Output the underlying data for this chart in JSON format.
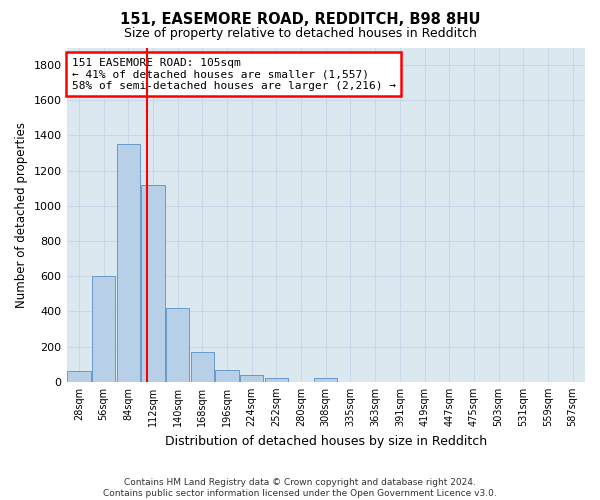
{
  "title1": "151, EASEMORE ROAD, REDDITCH, B98 8HU",
  "title2": "Size of property relative to detached houses in Redditch",
  "xlabel": "Distribution of detached houses by size in Redditch",
  "ylabel": "Number of detached properties",
  "footer": "Contains HM Land Registry data © Crown copyright and database right 2024.\nContains public sector information licensed under the Open Government Licence v3.0.",
  "bin_labels": [
    "28sqm",
    "56sqm",
    "84sqm",
    "112sqm",
    "140sqm",
    "168sqm",
    "196sqm",
    "224sqm",
    "252sqm",
    "280sqm",
    "308sqm",
    "335sqm",
    "363sqm",
    "391sqm",
    "419sqm",
    "447sqm",
    "475sqm",
    "503sqm",
    "531sqm",
    "559sqm",
    "587sqm"
  ],
  "bar_values": [
    60,
    600,
    1350,
    1120,
    420,
    170,
    65,
    38,
    20,
    0,
    22,
    0,
    0,
    0,
    0,
    0,
    0,
    0,
    0,
    0,
    0
  ],
  "bar_color": "#b8cfe8",
  "bar_edge_color": "#6699cc",
  "vline_bin_index": 2.75,
  "annotation_text": "151 EASEMORE ROAD: 105sqm\n← 41% of detached houses are smaller (1,557)\n58% of semi-detached houses are larger (2,216) →",
  "annotation_box_color": "white",
  "annotation_box_edge_color": "red",
  "ylim": [
    0,
    1900
  ],
  "yticks": [
    0,
    200,
    400,
    600,
    800,
    1000,
    1200,
    1400,
    1600,
    1800
  ],
  "grid_color": "#c8d8e8",
  "background_color": "#ffffff",
  "plot_bg_color": "#dce8f0"
}
